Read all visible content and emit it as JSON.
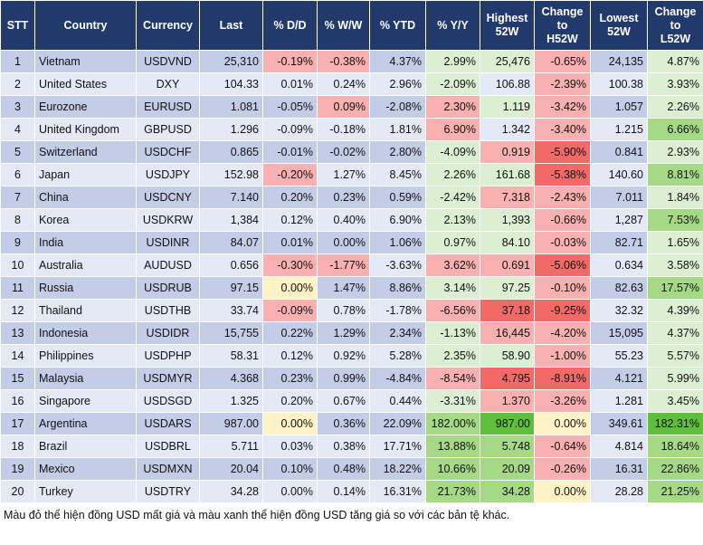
{
  "table": {
    "header": [
      "STT",
      "Country",
      "Currency",
      "Last",
      "% D/D",
      "% W/W",
      "% YTD",
      "% Y/Y",
      "Highest\n52W",
      "Change\nto\nH52W",
      "Lowest\n52W",
      "Change\nto\nL52W"
    ],
    "rows": [
      [
        "1",
        "Vietnam",
        "USDVND",
        "25,310",
        "-0.19%",
        "-0.38%",
        "4.37%",
        "2.99%",
        "25,476",
        "-0.65%",
        "24,135",
        "4.87%"
      ],
      [
        "2",
        "United States",
        "DXY",
        "104.33",
        "0.01%",
        "0.24%",
        "2.96%",
        "-2.09%",
        "106.88",
        "-2.39%",
        "100.38",
        "3.93%"
      ],
      [
        "3",
        "Eurozone",
        "EURUSD",
        "1.081",
        "-0.05%",
        "0.09%",
        "-2.08%",
        "2.30%",
        "1.119",
        "-3.42%",
        "1.057",
        "2.26%"
      ],
      [
        "4",
        "United Kingdom",
        "GBPUSD",
        "1.296",
        "-0.09%",
        "-0.18%",
        "1.81%",
        "6.90%",
        "1.342",
        "-3.40%",
        "1.215",
        "6.66%"
      ],
      [
        "5",
        "Switzerland",
        "USDCHF",
        "0.865",
        "-0.01%",
        "-0.02%",
        "2.80%",
        "-4.09%",
        "0.919",
        "-5.90%",
        "0.841",
        "2.93%"
      ],
      [
        "6",
        "Japan",
        "USDJPY",
        "152.98",
        "-0.20%",
        "1.27%",
        "8.45%",
        "2.26%",
        "161.68",
        "-5.38%",
        "140.60",
        "8.81%"
      ],
      [
        "7",
        "China",
        "USDCNY",
        "7.140",
        "0.20%",
        "0.23%",
        "0.59%",
        "-2.42%",
        "7.318",
        "-2.43%",
        "7.011",
        "1.84%"
      ],
      [
        "8",
        "Korea",
        "USDKRW",
        "1,384",
        "0.12%",
        "0.40%",
        "6.90%",
        "2.13%",
        "1,393",
        "-0.66%",
        "1,287",
        "7.53%"
      ],
      [
        "9",
        "India",
        "USDINR",
        "84.07",
        "0.01%",
        "0.00%",
        "1.06%",
        "0.97%",
        "84.10",
        "-0.03%",
        "82.71",
        "1.65%"
      ],
      [
        "10",
        "Australia",
        "AUDUSD",
        "0.656",
        "-0.30%",
        "-1.77%",
        "-3.63%",
        "3.62%",
        "0.691",
        "-5.06%",
        "0.634",
        "3.58%"
      ],
      [
        "11",
        "Russia",
        "USDRUB",
        "97.15",
        "0.00%",
        "1.47%",
        "8.86%",
        "3.14%",
        "97.25",
        "-0.10%",
        "82.63",
        "17.57%"
      ],
      [
        "12",
        "Thailand",
        "USDTHB",
        "33.74",
        "-0.09%",
        "0.78%",
        "-1.78%",
        "-6.56%",
        "37.18",
        "-9.25%",
        "32.32",
        "4.39%"
      ],
      [
        "13",
        "Indonesia",
        "USDIDR",
        "15,755",
        "0.22%",
        "1.29%",
        "2.34%",
        "-1.13%",
        "16,445",
        "-4.20%",
        "15,095",
        "4.37%"
      ],
      [
        "14",
        "Philippines",
        "USDPHP",
        "58.31",
        "0.12%",
        "0.92%",
        "5.28%",
        "2.35%",
        "58.90",
        "-1.00%",
        "55.23",
        "5.57%"
      ],
      [
        "15",
        "Malaysia",
        "USDMYR",
        "4.368",
        "0.23%",
        "0.99%",
        "-4.84%",
        "-8.54%",
        "4.795",
        "-8.91%",
        "4.121",
        "5.99%"
      ],
      [
        "16",
        "Singapore",
        "USDSGD",
        "1.325",
        "0.20%",
        "0.67%",
        "0.44%",
        "-3.31%",
        "1.370",
        "-3.26%",
        "1.281",
        "3.45%"
      ],
      [
        "17",
        "Argentina",
        "USDARS",
        "987.00",
        "0.00%",
        "0.36%",
        "22.09%",
        "182.00%",
        "987.00",
        "0.00%",
        "349.61",
        "182.31%"
      ],
      [
        "18",
        "Brazil",
        "USDBRL",
        "5.711",
        "0.03%",
        "0.38%",
        "17.71%",
        "13.88%",
        "5.748",
        "-0.64%",
        "4.814",
        "18.64%"
      ],
      [
        "19",
        "Mexico",
        "USDMXN",
        "20.04",
        "0.10%",
        "0.48%",
        "18.22%",
        "10.66%",
        "20.09",
        "-0.26%",
        "16.31",
        "22.86%"
      ],
      [
        "20",
        "Turkey",
        "USDTRY",
        "34.28",
        "0.00%",
        "0.14%",
        "16.31%",
        "21.73%",
        "34.28",
        "0.00%",
        "28.28",
        "21.25%"
      ]
    ]
  },
  "footnote": "Màu đỏ thể hiện đồng USD mất giá và màu xanh thể hiện đồng USD tăng giá so với các bản tệ khác."
}
